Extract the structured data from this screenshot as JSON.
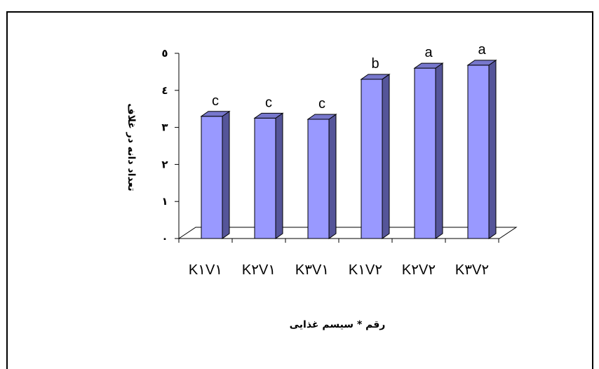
{
  "chart_data": {
    "type": "bar",
    "style": "3d",
    "categories": [
      "K١V١",
      "K٢V١",
      "K٣V١",
      "K١V٢",
      "K٢V٢",
      "K٣V٢"
    ],
    "values": [
      3.3,
      3.25,
      3.22,
      4.3,
      4.6,
      4.68
    ],
    "letters": [
      "c",
      "c",
      "c",
      "b",
      "a",
      "a"
    ],
    "ylim": [
      0,
      5
    ],
    "yticks": [
      0,
      1,
      2,
      3,
      4,
      5
    ],
    "ytick_labels": [
      "٠",
      "١",
      "٢",
      "٣",
      "٤",
      "٥"
    ],
    "ylabel": "تعداد دانه در غلاف",
    "xlabel": "رقم * سیسم غذایی",
    "colors": {
      "bar_front": "#9999ff",
      "bar_side": "#555599",
      "bar_top": "#7777cc",
      "axes": "#000000"
    }
  }
}
